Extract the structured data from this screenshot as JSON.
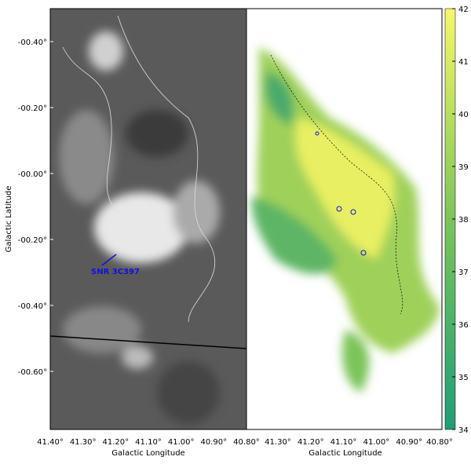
{
  "left_panel": {
    "y_axis_label": "Galactic Latitude",
    "x_axis_label": "Galactic Longitude",
    "yticks": [
      "-00.40°",
      "-00.20°",
      "-00.00°",
      "-00.20°",
      "-00.40°",
      "-00.60°"
    ],
    "xticks": [
      "41.40°",
      "41.30°",
      "41.20°",
      "41.10°",
      "41.00°",
      "40.90°",
      "40.80°"
    ],
    "annotation": "SNR 3C397"
  },
  "right_panel": {
    "x_axis_label": "Galactic Longitude",
    "xticks": [
      "41.30°",
      "41.20°",
      "41.10°",
      "41.00°",
      "40.90°",
      "40.80°"
    ]
  },
  "colorbar": {
    "lim": [
      34,
      42
    ],
    "ticks": [
      34,
      35,
      36,
      37,
      38,
      39,
      40,
      41,
      42
    ]
  }
}
